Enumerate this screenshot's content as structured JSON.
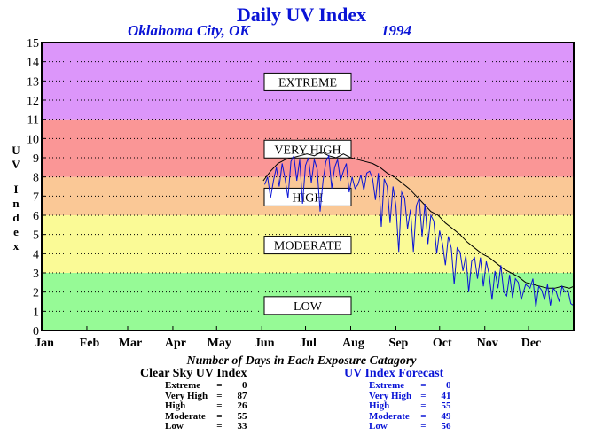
{
  "title": "Daily UV Index",
  "subtitle_location": "Oklahoma City, OK",
  "subtitle_year": "1994",
  "colors": {
    "extreme": "#dc96fa",
    "very_high": "#fa9696",
    "high": "#fac896",
    "moderate": "#fafa96",
    "low": "#96fa96",
    "clear_sky_line": "#000000",
    "forecast_line": "#0a14d6"
  },
  "summary": {
    "heading": "Number of Days in Each Exposure Catagory",
    "clear_sky": {
      "title": "Clear Sky UV Index",
      "rows": [
        {
          "label": "Extreme",
          "value": "0"
        },
        {
          "label": "Very High",
          "value": "87"
        },
        {
          "label": "High",
          "value": "26"
        },
        {
          "label": "Moderate",
          "value": "55"
        },
        {
          "label": "Low",
          "value": "33"
        }
      ]
    },
    "forecast": {
      "title": "UV Index Forecast",
      "rows": [
        {
          "label": "Extreme",
          "value": "0"
        },
        {
          "label": "Very High",
          "value": "41"
        },
        {
          "label": "High",
          "value": "55"
        },
        {
          "label": "Moderate",
          "value": "49"
        },
        {
          "label": "Low",
          "value": "56"
        }
      ]
    }
  },
  "chart_data": {
    "type": "line",
    "ylabel": "UV Index",
    "ylim": [
      0,
      15
    ],
    "yticks": [
      "0",
      "1",
      "2",
      "3",
      "4",
      "5",
      "6",
      "7",
      "8",
      "9",
      "10",
      "11",
      "12",
      "13",
      "14",
      "15"
    ],
    "xlim": [
      0,
      365
    ],
    "months": [
      "Jan",
      "Feb",
      "Mar",
      "Apr",
      "May",
      "Jun",
      "Jul",
      "Aug",
      "Sep",
      "Oct",
      "Nov",
      "Dec"
    ],
    "grid": "dotted horizontal",
    "bands": [
      {
        "label": "LOW",
        "from": 0,
        "to": 3,
        "color": "#96fa96"
      },
      {
        "label": "MODERATE",
        "from": 3,
        "to": 6,
        "color": "#fafa96"
      },
      {
        "label": "HIGH",
        "from": 6,
        "to": 8,
        "color": "#fac896"
      },
      {
        "label": "VERY HIGH",
        "from": 8,
        "to": 11,
        "color": "#fa9696"
      },
      {
        "label": "EXTREME",
        "from": 11,
        "to": 15,
        "color": "#dc96fa"
      }
    ],
    "series": [
      {
        "name": "Clear Sky UV Index",
        "color": "#000000",
        "points": [
          [
            152,
            7.8
          ],
          [
            157,
            8.3
          ],
          [
            162,
            8.7
          ],
          [
            167,
            8.9
          ],
          [
            172,
            9.0
          ],
          [
            177,
            9.1
          ],
          [
            182,
            9.2
          ],
          [
            187,
            9.1
          ],
          [
            192,
            9.3
          ],
          [
            197,
            9.1
          ],
          [
            202,
            9.0
          ],
          [
            207,
            9.2
          ],
          [
            212,
            9.0
          ],
          [
            217,
            8.9
          ],
          [
            222,
            8.8
          ],
          [
            227,
            8.7
          ],
          [
            232,
            8.5
          ],
          [
            237,
            8.2
          ],
          [
            242,
            8.0
          ],
          [
            247,
            7.7
          ],
          [
            252,
            7.4
          ],
          [
            257,
            7.0
          ],
          [
            262,
            6.6
          ],
          [
            267,
            6.2
          ],
          [
            272,
            6.0
          ],
          [
            277,
            5.6
          ],
          [
            282,
            5.3
          ],
          [
            287,
            5.0
          ],
          [
            292,
            4.6
          ],
          [
            297,
            4.3
          ],
          [
            302,
            4.0
          ],
          [
            307,
            3.8
          ],
          [
            312,
            3.5
          ],
          [
            317,
            3.2
          ],
          [
            322,
            3.0
          ],
          [
            327,
            2.8
          ],
          [
            332,
            2.5
          ],
          [
            337,
            2.4
          ],
          [
            342,
            2.3
          ],
          [
            347,
            2.2
          ],
          [
            352,
            2.2
          ],
          [
            357,
            2.3
          ],
          [
            362,
            2.2
          ],
          [
            365,
            2.3
          ]
        ]
      },
      {
        "name": "UV Index Forecast",
        "color": "#0a14d6",
        "points": [
          [
            153,
            7.6
          ],
          [
            155,
            8.0
          ],
          [
            157,
            6.9
          ],
          [
            159,
            7.8
          ],
          [
            161,
            8.5
          ],
          [
            163,
            7.5
          ],
          [
            165,
            8.7
          ],
          [
            167,
            7.9
          ],
          [
            169,
            6.9
          ],
          [
            171,
            8.8
          ],
          [
            173,
            9.1
          ],
          [
            175,
            7.8
          ],
          [
            177,
            8.9
          ],
          [
            179,
            6.6
          ],
          [
            181,
            8.6
          ],
          [
            183,
            9.0
          ],
          [
            185,
            7.7
          ],
          [
            187,
            8.9
          ],
          [
            189,
            8.4
          ],
          [
            191,
            6.2
          ],
          [
            193,
            7.8
          ],
          [
            195,
            8.8
          ],
          [
            197,
            9.1
          ],
          [
            199,
            7.4
          ],
          [
            201,
            8.5
          ],
          [
            203,
            8.9
          ],
          [
            205,
            7.8
          ],
          [
            207,
            8.3
          ],
          [
            209,
            8.7
          ],
          [
            211,
            7.2
          ],
          [
            213,
            8.0
          ],
          [
            215,
            7.4
          ],
          [
            217,
            7.6
          ],
          [
            219,
            8.1
          ],
          [
            221,
            7.3
          ],
          [
            223,
            8.2
          ],
          [
            225,
            8.3
          ],
          [
            227,
            7.9
          ],
          [
            229,
            6.8
          ],
          [
            231,
            8.2
          ],
          [
            233,
            5.4
          ],
          [
            235,
            7.9
          ],
          [
            237,
            7.5
          ],
          [
            239,
            5.6
          ],
          [
            241,
            7.5
          ],
          [
            243,
            6.5
          ],
          [
            245,
            4.1
          ],
          [
            247,
            7.2
          ],
          [
            249,
            6.9
          ],
          [
            251,
            5.3
          ],
          [
            253,
            6.3
          ],
          [
            255,
            4.1
          ],
          [
            257,
            6.5
          ],
          [
            259,
            6.9
          ],
          [
            261,
            4.9
          ],
          [
            263,
            6.6
          ],
          [
            265,
            4.5
          ],
          [
            267,
            6.0
          ],
          [
            269,
            5.7
          ],
          [
            271,
            4.0
          ],
          [
            273,
            5.2
          ],
          [
            275,
            4.5
          ],
          [
            277,
            3.4
          ],
          [
            279,
            4.9
          ],
          [
            281,
            4.3
          ],
          [
            283,
            2.4
          ],
          [
            285,
            4.3
          ],
          [
            287,
            4.1
          ],
          [
            289,
            3.1
          ],
          [
            291,
            3.9
          ],
          [
            293,
            2.0
          ],
          [
            295,
            3.6
          ],
          [
            297,
            3.8
          ],
          [
            299,
            2.7
          ],
          [
            301,
            3.8
          ],
          [
            303,
            2.3
          ],
          [
            305,
            3.6
          ],
          [
            307,
            2.9
          ],
          [
            309,
            1.6
          ],
          [
            311,
            3.1
          ],
          [
            313,
            2.2
          ],
          [
            315,
            3.4
          ],
          [
            317,
            2.0
          ],
          [
            319,
            1.8
          ],
          [
            321,
            2.9
          ],
          [
            323,
            1.7
          ],
          [
            325,
            2.7
          ],
          [
            327,
            2.5
          ],
          [
            329,
            1.6
          ],
          [
            332,
            2.4
          ],
          [
            335,
            2.2
          ],
          [
            337,
            2.7
          ],
          [
            339,
            1.2
          ],
          [
            341,
            2.3
          ],
          [
            343,
            2.1
          ],
          [
            345,
            1.6
          ],
          [
            347,
            2.4
          ],
          [
            349,
            1.3
          ],
          [
            351,
            2.2
          ],
          [
            353,
            2.0
          ],
          [
            355,
            1.5
          ],
          [
            357,
            2.3
          ],
          [
            359,
            2.0
          ],
          [
            361,
            2.1
          ],
          [
            363,
            1.4
          ],
          [
            365,
            1.3
          ]
        ]
      }
    ]
  }
}
